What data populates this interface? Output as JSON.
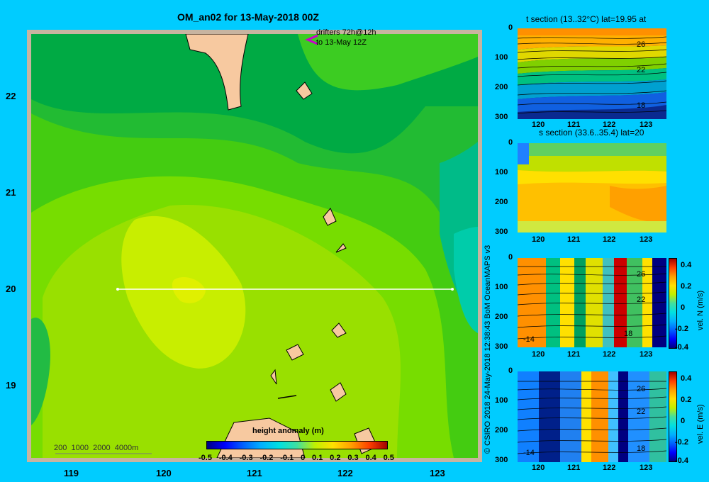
{
  "map": {
    "title": "OM_an02 for 13-May-2018 00Z",
    "drifters_line1": "drifters 72h@12h",
    "drifters_line2": "to 13-May 12Z",
    "x_ticks": [
      "119",
      "120",
      "121",
      "122",
      "123"
    ],
    "y_ticks": [
      "22",
      "21",
      "20",
      "19"
    ],
    "depth_legend": [
      "200",
      "1000",
      "2000",
      "4000m"
    ],
    "colorbar_title": "height anomaly  (m)",
    "colorbar_ticks": [
      "-0.5",
      "-0.4",
      "-0.3",
      "-0.2",
      "-0.1",
      "0",
      "0.1",
      "0.2",
      "0.3",
      "0.4",
      "0.5"
    ],
    "section_line": {
      "lon_start": 119.5,
      "lon_end": 123.2,
      "lat": 20.0
    }
  },
  "credit": "© CSIRO 2018   24-May-2018 12:38:43 BoM OceanMAPS v3",
  "panels": [
    {
      "title": "t section (13..32°C) lat=19.95 at",
      "contour_labels": [
        "26",
        "22",
        "18"
      ],
      "side_label": "",
      "colorbar_ticks": []
    },
    {
      "title": "s section (33.6..35.4) lat=20",
      "contour_labels": [],
      "side_label": "",
      "colorbar_ticks": []
    },
    {
      "title": "",
      "contour_labels": [
        "26",
        "22",
        "18",
        "-14"
      ],
      "side_label": "vel. N  (m/s)",
      "colorbar_ticks": [
        "0.4",
        "0.2",
        "0",
        "-0.2",
        "-0.4"
      ]
    },
    {
      "title": "",
      "contour_labels": [
        "26",
        "22",
        "18",
        "-14"
      ],
      "side_label": "vel. E  (m/s)",
      "colorbar_ticks": [
        "0.4",
        "0.2",
        "0",
        "-0.2",
        "-0.4"
      ]
    }
  ],
  "panel_axes": {
    "y_ticks": [
      "0",
      "100",
      "200",
      "300"
    ],
    "x_ticks": [
      "120",
      "121",
      "122",
      "123"
    ]
  },
  "colors": {
    "background": "#00ccff",
    "frame": "#c8b4a0",
    "land": "#f7c9a0",
    "drifter": "#cc00cc"
  }
}
